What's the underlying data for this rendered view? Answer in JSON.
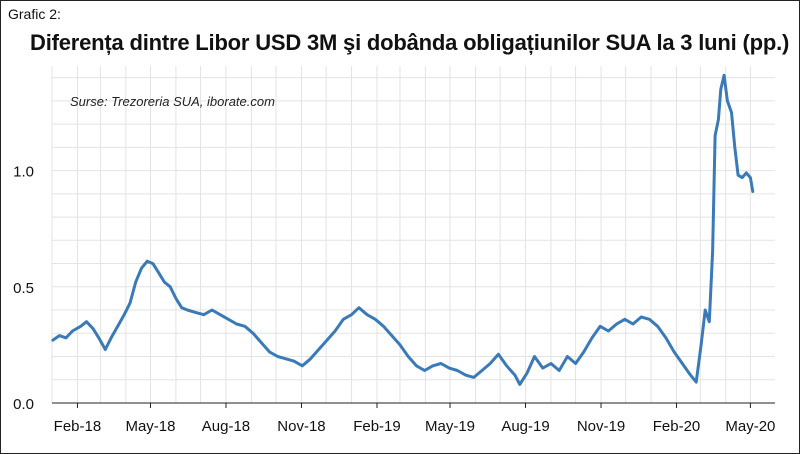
{
  "header": {
    "label": "Grafic 2:",
    "title": "Diferența dintre Libor USD 3M şi dobânda obligațiunilor SUA la 3 luni (pp.)"
  },
  "chart_data": {
    "type": "line",
    "title": "Diferența dintre Libor USD 3M şi dobânda obligațiunilor SUA la 3 luni (pp.)",
    "source": "Surse: Trezoreria SUA, iborate.com",
    "xlabel": "",
    "ylabel": "",
    "xlim": [
      "2018-01-01",
      "2020-05-31"
    ],
    "ylim": [
      0,
      1.45
    ],
    "grid": true,
    "x_ticks": [
      {
        "label": "Feb-18",
        "date": "2018-02-01"
      },
      {
        "label": "May-18",
        "date": "2018-05-01"
      },
      {
        "label": "Aug-18",
        "date": "2018-08-01"
      },
      {
        "label": "Nov-18",
        "date": "2018-11-01"
      },
      {
        "label": "Feb-19",
        "date": "2019-02-01"
      },
      {
        "label": "May-19",
        "date": "2019-05-01"
      },
      {
        "label": "Aug-19",
        "date": "2019-08-01"
      },
      {
        "label": "Nov-19",
        "date": "2019-11-01"
      },
      {
        "label": "Feb-20",
        "date": "2020-02-01"
      },
      {
        "label": "May-20",
        "date": "2020-05-01"
      }
    ],
    "y_ticks": [
      {
        "label": "0.0",
        "value": 0
      },
      {
        "label": "0.5",
        "value": 0.5
      },
      {
        "label": "1.0",
        "value": 1.0
      }
    ],
    "series": [
      {
        "color": "#3a7ab8",
        "points": [
          [
            "2018-01-02",
            0.27
          ],
          [
            "2018-01-10",
            0.29
          ],
          [
            "2018-01-18",
            0.28
          ],
          [
            "2018-01-26",
            0.31
          ],
          [
            "2018-02-05",
            0.33
          ],
          [
            "2018-02-12",
            0.35
          ],
          [
            "2018-02-20",
            0.32
          ],
          [
            "2018-02-27",
            0.28
          ],
          [
            "2018-03-07",
            0.23
          ],
          [
            "2018-03-14",
            0.28
          ],
          [
            "2018-03-22",
            0.33
          ],
          [
            "2018-03-30",
            0.38
          ],
          [
            "2018-04-06",
            0.43
          ],
          [
            "2018-04-13",
            0.52
          ],
          [
            "2018-04-20",
            0.58
          ],
          [
            "2018-04-27",
            0.61
          ],
          [
            "2018-05-04",
            0.6
          ],
          [
            "2018-05-11",
            0.56
          ],
          [
            "2018-05-18",
            0.52
          ],
          [
            "2018-05-25",
            0.5
          ],
          [
            "2018-06-01",
            0.45
          ],
          [
            "2018-06-08",
            0.41
          ],
          [
            "2018-06-15",
            0.4
          ],
          [
            "2018-06-25",
            0.39
          ],
          [
            "2018-07-05",
            0.38
          ],
          [
            "2018-07-15",
            0.4
          ],
          [
            "2018-07-25",
            0.38
          ],
          [
            "2018-08-04",
            0.36
          ],
          [
            "2018-08-14",
            0.34
          ],
          [
            "2018-08-24",
            0.33
          ],
          [
            "2018-09-03",
            0.3
          ],
          [
            "2018-09-13",
            0.26
          ],
          [
            "2018-09-23",
            0.22
          ],
          [
            "2018-10-03",
            0.2
          ],
          [
            "2018-10-13",
            0.19
          ],
          [
            "2018-10-23",
            0.18
          ],
          [
            "2018-11-02",
            0.16
          ],
          [
            "2018-11-12",
            0.19
          ],
          [
            "2018-11-22",
            0.23
          ],
          [
            "2018-12-02",
            0.27
          ],
          [
            "2018-12-12",
            0.31
          ],
          [
            "2018-12-22",
            0.36
          ],
          [
            "2019-01-01",
            0.38
          ],
          [
            "2019-01-10",
            0.41
          ],
          [
            "2019-01-20",
            0.38
          ],
          [
            "2019-01-30",
            0.36
          ],
          [
            "2019-02-09",
            0.33
          ],
          [
            "2019-02-19",
            0.29
          ],
          [
            "2019-03-01",
            0.25
          ],
          [
            "2019-03-11",
            0.2
          ],
          [
            "2019-03-21",
            0.16
          ],
          [
            "2019-03-31",
            0.14
          ],
          [
            "2019-04-10",
            0.16
          ],
          [
            "2019-04-20",
            0.17
          ],
          [
            "2019-04-30",
            0.15
          ],
          [
            "2019-05-10",
            0.14
          ],
          [
            "2019-05-20",
            0.12
          ],
          [
            "2019-05-30",
            0.11
          ],
          [
            "2019-06-09",
            0.14
          ],
          [
            "2019-06-19",
            0.17
          ],
          [
            "2019-06-29",
            0.21
          ],
          [
            "2019-07-09",
            0.16
          ],
          [
            "2019-07-19",
            0.12
          ],
          [
            "2019-07-25",
            0.08
          ],
          [
            "2019-08-03",
            0.13
          ],
          [
            "2019-08-12",
            0.2
          ],
          [
            "2019-08-22",
            0.15
          ],
          [
            "2019-09-01",
            0.17
          ],
          [
            "2019-09-11",
            0.14
          ],
          [
            "2019-09-21",
            0.2
          ],
          [
            "2019-10-01",
            0.17
          ],
          [
            "2019-10-11",
            0.22
          ],
          [
            "2019-10-21",
            0.28
          ],
          [
            "2019-10-31",
            0.33
          ],
          [
            "2019-11-10",
            0.31
          ],
          [
            "2019-11-20",
            0.34
          ],
          [
            "2019-11-30",
            0.36
          ],
          [
            "2019-12-10",
            0.34
          ],
          [
            "2019-12-20",
            0.37
          ],
          [
            "2019-12-30",
            0.36
          ],
          [
            "2020-01-09",
            0.33
          ],
          [
            "2020-01-19",
            0.28
          ],
          [
            "2020-01-29",
            0.22
          ],
          [
            "2020-02-08",
            0.17
          ],
          [
            "2020-02-18",
            0.12
          ],
          [
            "2020-02-25",
            0.09
          ],
          [
            "2020-03-02",
            0.25
          ],
          [
            "2020-03-07",
            0.4
          ],
          [
            "2020-03-12",
            0.35
          ],
          [
            "2020-03-16",
            0.65
          ],
          [
            "2020-03-19",
            1.15
          ],
          [
            "2020-03-23",
            1.22
          ],
          [
            "2020-03-26",
            1.35
          ],
          [
            "2020-03-30",
            1.41
          ],
          [
            "2020-04-03",
            1.3
          ],
          [
            "2020-04-08",
            1.25
          ],
          [
            "2020-04-12",
            1.1
          ],
          [
            "2020-04-16",
            0.98
          ],
          [
            "2020-04-21",
            0.97
          ],
          [
            "2020-04-26",
            0.99
          ],
          [
            "2020-05-01",
            0.97
          ],
          [
            "2020-05-04",
            0.91
          ]
        ]
      }
    ]
  }
}
